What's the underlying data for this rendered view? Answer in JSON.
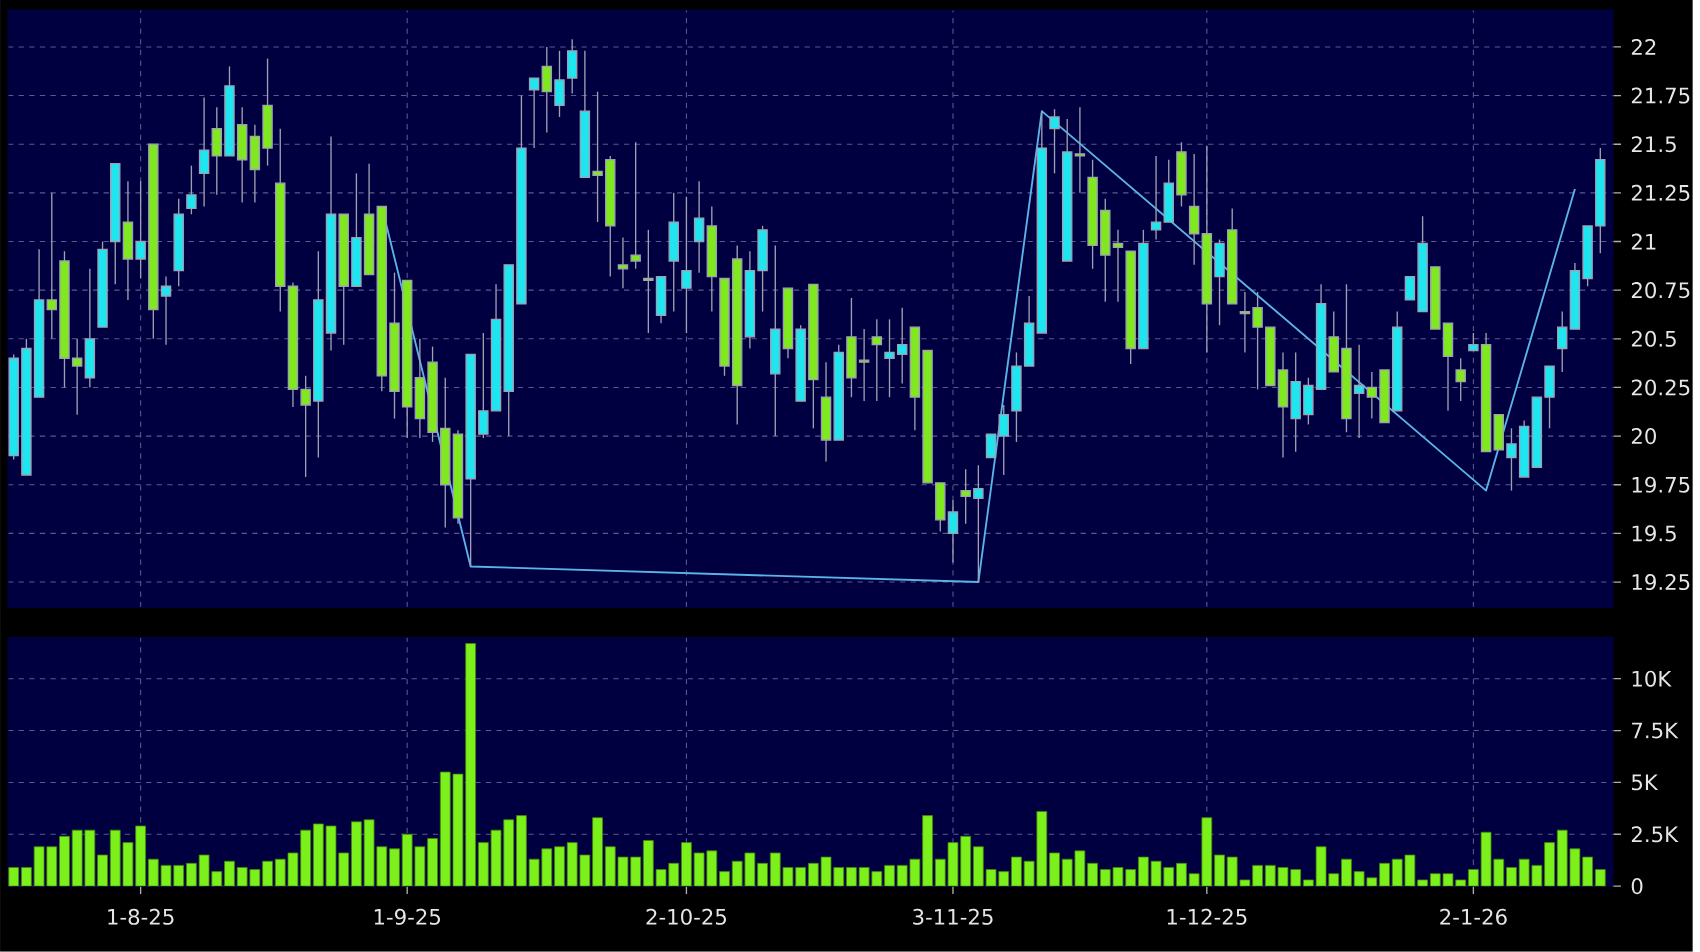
{
  "chart_data": [
    {
      "type": "candlestick",
      "categories": [
        null,
        null,
        null,
        null,
        null,
        null,
        null,
        null,
        null,
        null,
        null,
        null,
        null,
        null,
        null,
        null,
        null,
        null,
        null,
        null,
        null,
        null,
        null,
        null,
        null,
        null,
        null,
        null,
        null,
        null,
        null,
        null,
        null,
        null,
        null,
        null,
        null,
        null,
        null,
        null,
        null,
        null,
        null,
        null,
        null,
        null,
        null,
        null,
        null,
        null,
        null,
        null,
        null,
        null,
        null,
        null,
        null,
        null,
        null,
        null,
        null,
        null,
        null,
        null,
        null,
        null,
        null,
        null,
        null,
        null,
        null,
        null,
        null,
        null,
        null,
        null,
        null,
        null,
        null,
        null,
        null,
        null,
        null,
        null,
        null,
        null,
        null,
        null,
        null,
        null,
        null,
        null,
        null,
        null,
        null,
        null,
        null,
        null,
        null,
        null,
        null,
        null,
        null,
        null,
        null,
        null,
        null,
        null,
        null,
        null,
        null,
        null,
        null,
        null,
        null,
        null,
        null,
        null,
        null,
        null,
        null,
        null,
        null,
        null,
        null,
        null
      ],
      "ohlc": [
        [
          19.9,
          20.42,
          19.88,
          20.4
        ],
        [
          19.8,
          20.5,
          19.8,
          20.45
        ],
        [
          20.2,
          20.96,
          20.2,
          20.7
        ],
        [
          20.7,
          21.25,
          20.5,
          20.65
        ],
        [
          20.9,
          20.95,
          20.25,
          20.4
        ],
        [
          20.4,
          20.5,
          20.11,
          20.36
        ],
        [
          20.3,
          20.86,
          20.25,
          20.5
        ],
        [
          20.56,
          21.0,
          20.56,
          20.96
        ],
        [
          21.0,
          21.4,
          20.78,
          21.4
        ],
        [
          21.1,
          21.31,
          20.7,
          20.91
        ],
        [
          20.91,
          21.31,
          20.81,
          21.0
        ],
        [
          21.5,
          21.5,
          20.5,
          20.65
        ],
        [
          20.72,
          20.82,
          20.47,
          20.77
        ],
        [
          20.85,
          21.22,
          20.77,
          21.14
        ],
        [
          21.17,
          21.39,
          21.14,
          21.24
        ],
        [
          21.35,
          21.74,
          21.18,
          21.47
        ],
        [
          21.58,
          21.69,
          21.24,
          21.44
        ],
        [
          21.44,
          21.9,
          21.44,
          21.8
        ],
        [
          21.6,
          21.69,
          21.2,
          21.42
        ],
        [
          21.54,
          21.6,
          21.2,
          21.37
        ],
        [
          21.7,
          21.94,
          21.39,
          21.48
        ],
        [
          21.3,
          21.58,
          20.64,
          20.77
        ],
        [
          20.77,
          20.79,
          20.15,
          20.24
        ],
        [
          20.24,
          20.31,
          19.79,
          20.16
        ],
        [
          20.18,
          20.95,
          19.89,
          20.7
        ],
        [
          20.53,
          21.54,
          20.44,
          21.14
        ],
        [
          21.14,
          21.14,
          20.47,
          20.77
        ],
        [
          20.77,
          21.35,
          20.77,
          21.02
        ],
        [
          21.14,
          21.4,
          20.83,
          20.83
        ],
        [
          21.18,
          21.18,
          20.23,
          20.31
        ],
        [
          20.58,
          20.84,
          20.09,
          20.23
        ],
        [
          20.8,
          20.8,
          19.99,
          20.15
        ],
        [
          20.3,
          20.5,
          19.99,
          20.09
        ],
        [
          20.38,
          20.46,
          19.97,
          20.02
        ],
        [
          20.04,
          20.3,
          19.53,
          19.75
        ],
        [
          20.01,
          20.03,
          19.55,
          19.58
        ],
        [
          19.78,
          20.42,
          19.33,
          20.42
        ],
        [
          20.01,
          20.53,
          19.99,
          20.13
        ],
        [
          20.13,
          20.78,
          20.13,
          20.6
        ],
        [
          20.23,
          20.88,
          20.0,
          20.88
        ],
        [
          20.68,
          21.75,
          20.68,
          21.48
        ],
        [
          21.78,
          21.84,
          21.48,
          21.84
        ],
        [
          21.9,
          22.0,
          21.56,
          21.77
        ],
        [
          21.7,
          21.98,
          21.64,
          21.83
        ],
        [
          21.84,
          22.04,
          21.76,
          21.98
        ],
        [
          21.33,
          21.98,
          21.33,
          21.67
        ],
        [
          21.36,
          21.77,
          21.1,
          21.34
        ],
        [
          21.42,
          21.44,
          20.82,
          21.08
        ],
        [
          20.88,
          21.02,
          20.76,
          20.86
        ],
        [
          20.93,
          21.51,
          20.86,
          20.9
        ],
        [
          20.81,
          21.06,
          20.53,
          20.8
        ],
        [
          20.62,
          20.82,
          20.58,
          20.82
        ],
        [
          20.9,
          21.25,
          20.64,
          21.1
        ],
        [
          20.76,
          21.23,
          20.53,
          20.85
        ],
        [
          21.0,
          21.31,
          20.84,
          21.12
        ],
        [
          21.08,
          21.18,
          20.64,
          20.82
        ],
        [
          20.81,
          20.81,
          20.31,
          20.36
        ],
        [
          20.91,
          20.98,
          20.06,
          20.26
        ],
        [
          20.51,
          20.95,
          20.45,
          20.85
        ],
        [
          20.85,
          21.08,
          20.64,
          21.06
        ],
        [
          20.32,
          20.98,
          20.0,
          20.55
        ],
        [
          20.76,
          20.76,
          20.4,
          20.45
        ],
        [
          20.18,
          20.57,
          20.18,
          20.55
        ],
        [
          20.78,
          20.78,
          20.04,
          20.29
        ],
        [
          20.2,
          20.38,
          19.87,
          19.98
        ],
        [
          19.98,
          20.47,
          19.98,
          20.43
        ],
        [
          20.51,
          20.71,
          20.2,
          20.3
        ],
        [
          20.39,
          20.55,
          20.18,
          20.38
        ],
        [
          20.51,
          20.6,
          20.18,
          20.47
        ],
        [
          20.4,
          20.6,
          20.2,
          20.43
        ],
        [
          20.42,
          20.66,
          20.27,
          20.47
        ],
        [
          20.56,
          20.56,
          20.03,
          20.2
        ],
        [
          20.44,
          20.44,
          19.76,
          19.76
        ],
        [
          19.76,
          19.76,
          19.51,
          19.57
        ],
        [
          19.5,
          19.67,
          19.35,
          19.61
        ],
        [
          19.72,
          19.83,
          19.55,
          19.69
        ],
        [
          19.68,
          19.85,
          19.25,
          19.73
        ],
        [
          19.89,
          20.01,
          19.89,
          20.01
        ],
        [
          20.0,
          20.16,
          19.8,
          20.11
        ],
        [
          20.13,
          20.43,
          19.97,
          20.36
        ],
        [
          20.36,
          20.72,
          20.36,
          20.58
        ],
        [
          20.53,
          21.67,
          20.53,
          21.48
        ],
        [
          21.58,
          21.68,
          21.35,
          21.64
        ],
        [
          20.9,
          21.63,
          20.9,
          21.46
        ],
        [
          21.45,
          21.69,
          21.25,
          21.44
        ],
        [
          21.33,
          21.42,
          20.86,
          20.98
        ],
        [
          21.16,
          21.22,
          20.69,
          20.93
        ],
        [
          20.99,
          21.06,
          20.69,
          20.97
        ],
        [
          20.95,
          20.95,
          20.37,
          20.45
        ],
        [
          20.45,
          21.06,
          20.45,
          20.99
        ],
        [
          21.06,
          21.44,
          21.01,
          21.1
        ],
        [
          21.1,
          21.42,
          21.1,
          21.3
        ],
        [
          21.46,
          21.51,
          21.18,
          21.24
        ],
        [
          21.18,
          21.45,
          20.88,
          21.04
        ],
        [
          21.04,
          21.49,
          20.43,
          20.68
        ],
        [
          20.82,
          21.01,
          20.57,
          20.99
        ],
        [
          21.06,
          21.17,
          20.68,
          20.68
        ],
        [
          20.64,
          20.74,
          20.43,
          20.63
        ],
        [
          20.66,
          20.74,
          20.24,
          20.56
        ],
        [
          20.56,
          20.56,
          20.26,
          20.26
        ],
        [
          20.34,
          20.43,
          19.89,
          20.15
        ],
        [
          20.09,
          20.43,
          19.92,
          20.28
        ],
        [
          20.11,
          20.3,
          20.06,
          20.26
        ],
        [
          20.24,
          20.78,
          20.24,
          20.68
        ],
        [
          20.51,
          20.64,
          20.33,
          20.33
        ],
        [
          20.45,
          20.78,
          20.02,
          20.09
        ],
        [
          20.22,
          20.47,
          19.99,
          20.26
        ],
        [
          20.25,
          20.33,
          20.09,
          20.2
        ],
        [
          20.34,
          20.34,
          20.07,
          20.07
        ],
        [
          20.13,
          20.64,
          20.13,
          20.56
        ],
        [
          20.7,
          20.82,
          20.7,
          20.82
        ],
        [
          20.64,
          21.13,
          20.64,
          20.99
        ],
        [
          20.87,
          20.87,
          20.55,
          20.55
        ],
        [
          20.58,
          20.58,
          20.13,
          20.41
        ],
        [
          20.34,
          20.4,
          20.18,
          20.28
        ],
        [
          20.44,
          20.53,
          20.44,
          20.47
        ],
        [
          20.47,
          20.53,
          19.92,
          19.92
        ],
        [
          20.11,
          20.11,
          19.93,
          19.93
        ],
        [
          19.89,
          20.04,
          19.72,
          19.96
        ],
        [
          19.79,
          20.08,
          19.79,
          20.05
        ],
        [
          19.84,
          20.2,
          19.84,
          20.2
        ],
        [
          20.2,
          20.36,
          20.04,
          20.36
        ],
        [
          20.45,
          20.64,
          20.33,
          20.56
        ],
        [
          20.55,
          20.89,
          20.55,
          20.85
        ],
        [
          20.81,
          21.08,
          20.77,
          21.08
        ],
        [
          21.08,
          21.48,
          20.94,
          21.42
        ]
      ],
      "colors": [
        "#1ee6f0",
        "#1ee6f0",
        "#1ee6f0",
        "#7fe81e",
        "#7fe81e",
        "#7fe81e",
        "#1ee6f0",
        "#1ee6f0",
        "#1ee6f0",
        "#7fe81e",
        "#1ee6f0",
        "#7fe81e",
        "#1ee6f0",
        "#1ee6f0",
        "#1ee6f0",
        "#1ee6f0",
        "#7fe81e",
        "#1ee6f0",
        "#7fe81e",
        "#7fe81e",
        "#7fe81e",
        "#7fe81e",
        "#7fe81e",
        "#7fe81e",
        "#1ee6f0",
        "#1ee6f0",
        "#7fe81e",
        "#1ee6f0",
        "#7fe81e",
        "#7fe81e",
        "#7fe81e",
        "#7fe81e",
        "#7fe81e",
        "#7fe81e",
        "#7fe81e",
        "#7fe81e",
        "#1ee6f0",
        "#1ee6f0",
        "#1ee6f0",
        "#1ee6f0",
        "#1ee6f0",
        "#1ee6f0",
        "#7fe81e",
        "#1ee6f0",
        "#1ee6f0",
        "#1ee6f0",
        "#7fe81e",
        "#7fe81e",
        "#7fe81e",
        "#7fe81e",
        "#7fe81e",
        "#1ee6f0",
        "#1ee6f0",
        "#1ee6f0",
        "#1ee6f0",
        "#7fe81e",
        "#7fe81e",
        "#7fe81e",
        "#1ee6f0",
        "#1ee6f0",
        "#1ee6f0",
        "#7fe81e",
        "#1ee6f0",
        "#7fe81e",
        "#7fe81e",
        "#1ee6f0",
        "#7fe81e",
        "#7fe81e",
        "#7fe81e",
        "#1ee6f0",
        "#1ee6f0",
        "#7fe81e",
        "#7fe81e",
        "#7fe81e",
        "#1ee6f0",
        "#7fe81e",
        "#1ee6f0",
        "#1ee6f0",
        "#1ee6f0",
        "#1ee6f0",
        "#1ee6f0",
        "#1ee6f0",
        "#1ee6f0",
        "#1ee6f0",
        "#7fe81e",
        "#7fe81e",
        "#7fe81e",
        "#7fe81e",
        "#7fe81e",
        "#1ee6f0",
        "#1ee6f0",
        "#1ee6f0",
        "#7fe81e",
        "#7fe81e",
        "#7fe81e",
        "#1ee6f0",
        "#7fe81e",
        "#7fe81e",
        "#7fe81e",
        "#7fe81e",
        "#7fe81e",
        "#1ee6f0",
        "#1ee6f0",
        "#1ee6f0",
        "#7fe81e",
        "#7fe81e",
        "#1ee6f0",
        "#7fe81e",
        "#7fe81e",
        "#1ee6f0",
        "#1ee6f0",
        "#1ee6f0",
        "#7fe81e",
        "#7fe81e",
        "#7fe81e",
        "#1ee6f0",
        "#7fe81e",
        "#7fe81e",
        "#1ee6f0",
        "#1ee6f0",
        "#1ee6f0",
        "#1ee6f0",
        "#1ee6f0",
        "#1ee6f0",
        "#1ee6f0",
        "#1ee6f0"
      ],
      "series": [
        {
          "type": "line",
          "color": "#5ab4e6",
          "values": [
            null,
            null,
            null,
            null,
            null,
            null,
            null,
            null,
            null,
            null,
            null,
            null,
            null,
            null,
            null,
            null,
            null,
            null,
            null,
            null,
            null,
            null,
            null,
            null,
            null,
            null,
            null,
            null,
            null,
            21.18,
            null,
            null,
            null,
            null,
            null,
            null,
            19.33,
            null,
            null,
            null,
            null,
            null,
            null,
            null,
            null,
            null,
            null,
            null,
            null,
            null,
            null,
            null,
            null,
            null,
            null,
            null,
            null,
            null,
            null,
            null,
            null,
            null,
            null,
            null,
            null,
            null,
            null,
            null,
            null,
            null,
            null,
            null,
            null,
            null,
            null,
            null,
            19.25,
            null,
            null,
            null,
            null,
            21.67,
            null,
            null,
            null,
            null,
            null,
            null,
            null,
            null,
            null,
            null,
            null,
            null,
            null,
            null,
            null,
            null,
            null,
            null,
            null,
            null,
            null,
            null,
            null,
            null,
            null,
            null,
            null,
            null,
            null,
            null,
            null,
            null,
            null,
            null,
            19.72,
            null,
            null,
            null,
            null,
            null,
            null,
            21.27,
            null,
            null
          ]
        }
      ],
      "ylim": [
        19.12,
        22.19
      ],
      "yticks": [
        19.25,
        19.5,
        19.75,
        20,
        20.25,
        20.5,
        20.75,
        21,
        21.25,
        21.5,
        21.75,
        22
      ],
      "grid": true,
      "tick_labels": "y"
    },
    {
      "type": "bar",
      "categories": [
        null,
        null,
        null,
        null,
        null,
        null,
        null,
        null,
        null,
        null,
        "1-8-25",
        null,
        null,
        null,
        null,
        null,
        null,
        null,
        null,
        null,
        null,
        null,
        null,
        null,
        null,
        null,
        null,
        null,
        null,
        null,
        null,
        "1-9-25",
        null,
        null,
        null,
        null,
        null,
        null,
        null,
        null,
        null,
        null,
        null,
        null,
        null,
        null,
        null,
        null,
        null,
        null,
        null,
        null,
        null,
        "2-10-25",
        null,
        null,
        null,
        null,
        null,
        null,
        null,
        null,
        null,
        null,
        null,
        null,
        null,
        null,
        null,
        null,
        null,
        null,
        null,
        null,
        "3-11-25",
        null,
        null,
        null,
        null,
        null,
        null,
        null,
        null,
        null,
        null,
        null,
        null,
        null,
        null,
        null,
        null,
        null,
        null,
        null,
        "1-12-25",
        null,
        null,
        null,
        null,
        null,
        null,
        null,
        null,
        null,
        null,
        null,
        null,
        null,
        null,
        null,
        null,
        null,
        null,
        null,
        null,
        "2-1-26",
        null,
        null,
        null,
        null,
        null,
        null,
        null,
        null,
        null,
        null
      ],
      "values": [
        900,
        900,
        1900,
        1900,
        2400,
        2700,
        2700,
        1500,
        2700,
        2100,
        2900,
        1300,
        1000,
        1000,
        1100,
        1500,
        700,
        1200,
        900,
        800,
        1200,
        1300,
        1600,
        2700,
        3000,
        2900,
        1600,
        3100,
        3200,
        1900,
        1800,
        2500,
        1900,
        2300,
        5500,
        5400,
        11700,
        2100,
        2700,
        3200,
        3400,
        1300,
        1800,
        1900,
        2100,
        1500,
        3300,
        1900,
        1400,
        1400,
        2200,
        800,
        1100,
        2100,
        1600,
        1700,
        700,
        1200,
        1600,
        1100,
        1600,
        900,
        900,
        1100,
        1400,
        900,
        900,
        900,
        700,
        1000,
        1000,
        1300,
        3400,
        1300,
        2100,
        2400,
        1900,
        800,
        700,
        1400,
        1200,
        3600,
        1600,
        1300,
        1700,
        1100,
        800,
        900,
        800,
        1400,
        1200,
        900,
        1100,
        600,
        3300,
        1500,
        1400,
        300,
        1000,
        1000,
        900,
        800,
        300,
        1900,
        600,
        1300,
        700,
        400,
        1100,
        1300,
        1500,
        300,
        600,
        600,
        300,
        800,
        2600,
        1300,
        900,
        1300,
        1000,
        2100,
        2700,
        1800,
        1400,
        800
      ],
      "color": "#7cf01a",
      "ylim": [
        0,
        12000
      ],
      "yticks": [
        0,
        {
          "value": 2500,
          "label": "2.5K"
        },
        {
          "value": 5000,
          "label": "5K"
        },
        {
          "value": 7500,
          "label": "7.5K"
        },
        {
          "value": 10000,
          "label": "10K"
        }
      ],
      "grid": true
    }
  ]
}
